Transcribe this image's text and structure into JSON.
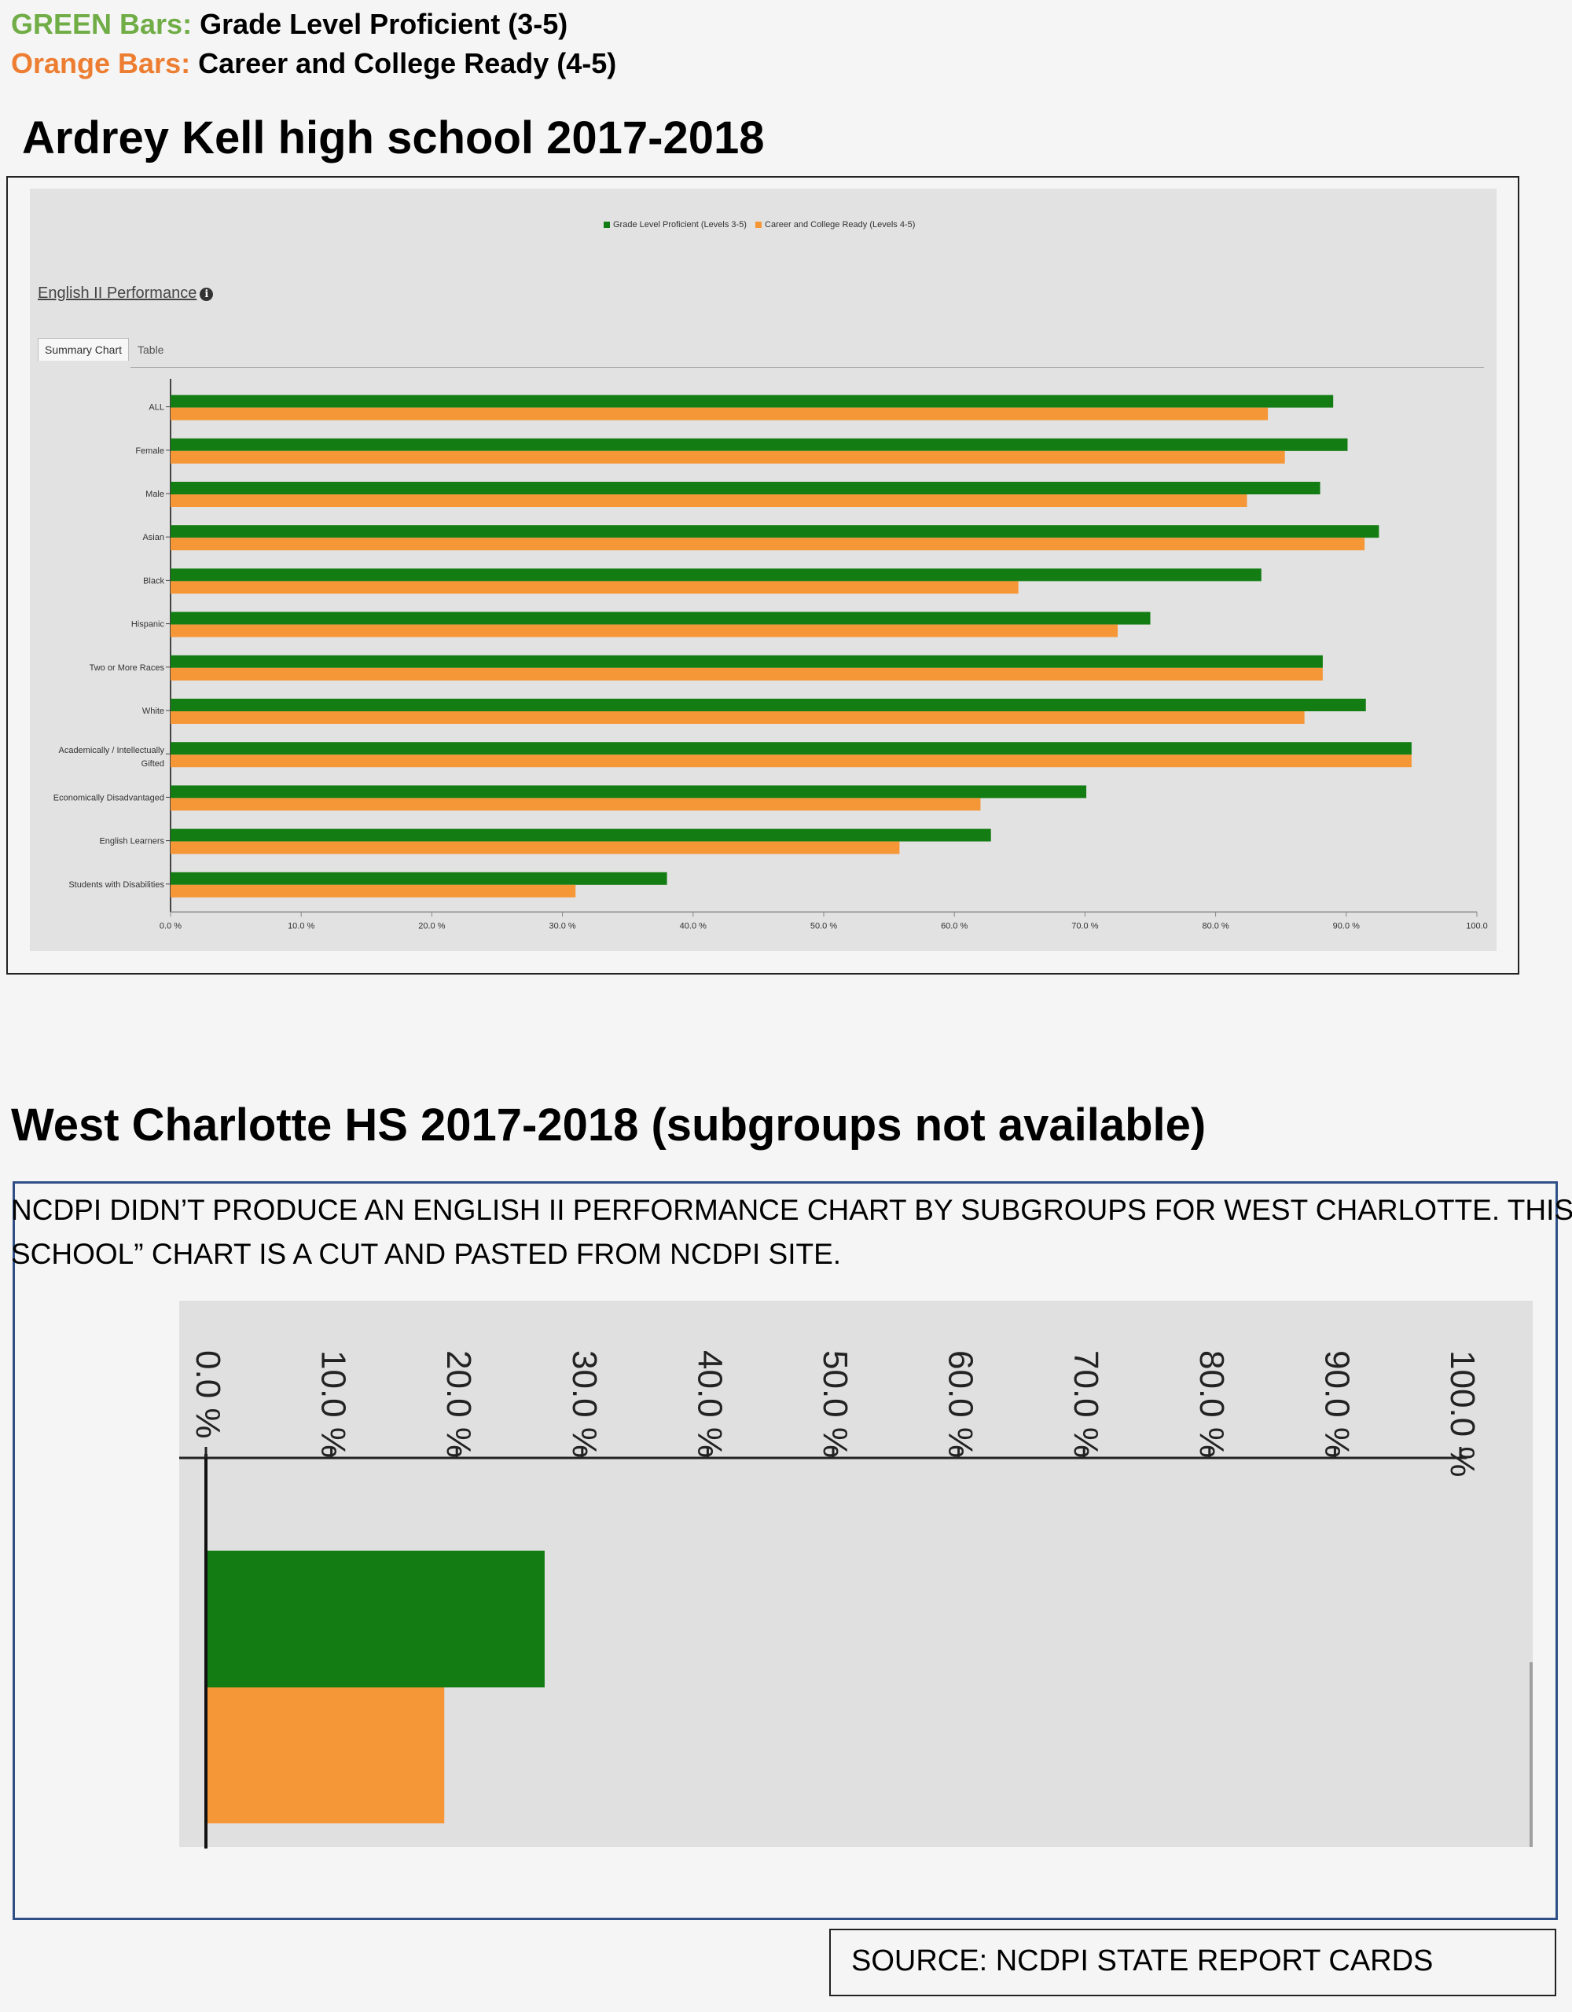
{
  "legend_note": {
    "green_prefix": "GREEN Bars:",
    "green_text": "Grade Level Proficient (3-5)",
    "orange_prefix": "Orange Bars:",
    "orange_text": "Career and College Ready (4-5)"
  },
  "colors": {
    "green": "#137d13",
    "orange": "#f59637",
    "green_word": "#70ad47",
    "orange_word": "#ed7d31"
  },
  "section1": {
    "title": "Ardrey Kell high school 2017-2018",
    "chart_title": "English II Performance",
    "tabs": [
      "Summary Chart",
      "Table"
    ]
  },
  "section2": {
    "title": "West Charlotte HS  2017-2018 (subgroups not available)",
    "note_line1": "NCDPI DIDN’T PRODUCE AN ENGLISH II PERFORMANCE CHART BY SUBGROUPS FOR WEST CHARLOTTE.  THIS “BY",
    "note_line2": "SCHOOL” CHART IS A CUT AND PASTED FROM NCDPI SITE."
  },
  "source": "SOURCE:  NCDPI STATE REPORT CARDS",
  "chart_data": [
    {
      "type": "bar",
      "orientation": "horizontal",
      "title": "",
      "categories": [
        "ALL",
        "Female",
        "Male",
        "Asian",
        "Black",
        "Hispanic",
        "Two or More Races",
        "White",
        "Academically / Intellectually Gifted",
        "Economically Disadvantaged",
        "English Learners",
        "Students with Disabilities"
      ],
      "series": [
        {
          "name": "Grade Level Proficient (Levels 3-5)",
          "values": [
            89.0,
            90.1,
            88.0,
            92.5,
            83.5,
            75.0,
            88.2,
            91.5,
            95.0,
            70.1,
            62.8,
            38.0
          ]
        },
        {
          "name": "Career and College Ready (Levels 4-5)",
          "values": [
            84.0,
            85.3,
            82.4,
            91.4,
            64.9,
            72.5,
            88.2,
            86.8,
            95.0,
            62.0,
            55.8,
            31.0
          ]
        }
      ],
      "xlim": [
        0,
        100
      ],
      "xticks": [
        "0.0 %",
        "10.0 %",
        "20.0 %",
        "30.0 %",
        "40.0 %",
        "50.0 %",
        "60.0 %",
        "70.0 %",
        "80.0 %",
        "90.0 %",
        "100.0"
      ],
      "legend_position": "top-center"
    },
    {
      "type": "bar",
      "orientation": "horizontal",
      "title": "",
      "categories": [
        ""
      ],
      "series": [
        {
          "name": "",
          "values": [
            27.0
          ]
        },
        {
          "name": "",
          "values": [
            19.0
          ]
        }
      ],
      "xlim": [
        0,
        100
      ],
      "xticks": [
        "0.0 %",
        "10.0 %",
        "20.0 %",
        "30.0 %",
        "40.0 %",
        "50.0 %",
        "60.0 %",
        "70.0 %",
        "80.0 %",
        "90.0 %",
        "100.0 %"
      ]
    }
  ]
}
